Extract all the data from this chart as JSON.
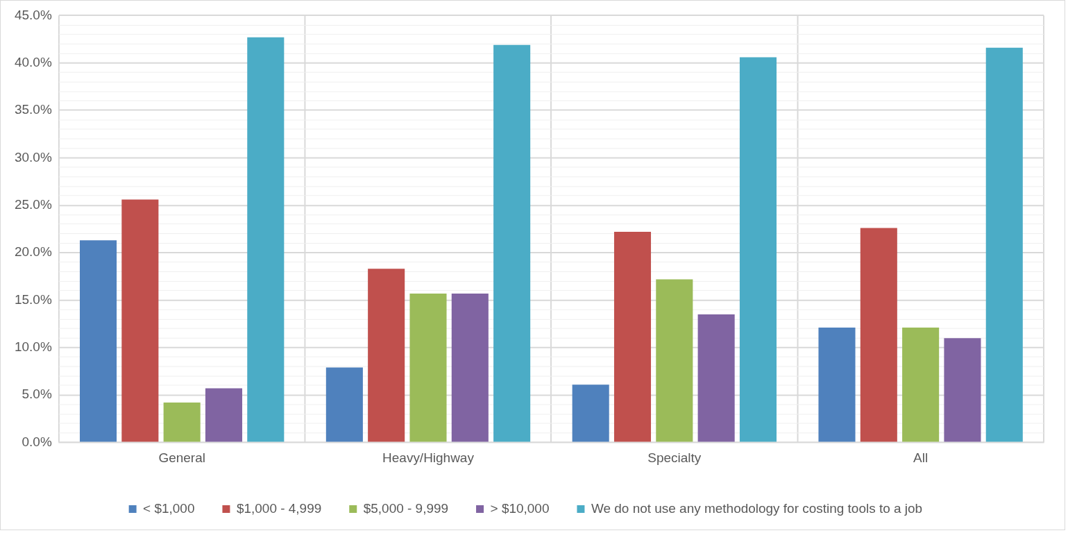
{
  "chart_data": {
    "type": "bar",
    "categories": [
      "General",
      "Heavy/Highway",
      "Specialty",
      "All"
    ],
    "series": [
      {
        "name": "< $1,000",
        "color": "#4f81bd",
        "values": [
          21.3,
          7.9,
          6.1,
          12.1
        ]
      },
      {
        "name": "$1,000 - 4,999",
        "color": "#c0504d",
        "values": [
          25.6,
          18.3,
          22.2,
          22.6
        ]
      },
      {
        "name": "$5,000 - 9,999",
        "color": "#9bbb59",
        "values": [
          4.2,
          15.7,
          17.2,
          12.1
        ]
      },
      {
        "name": "> $10,000",
        "color": "#8064a2",
        "values": [
          5.7,
          15.7,
          13.5,
          11.0
        ]
      },
      {
        "name": "We do not use any methodology for costing tools to a job",
        "color": "#4bacc6",
        "values": [
          42.7,
          41.9,
          40.6,
          41.6
        ]
      }
    ],
    "ylim": [
      0,
      45
    ],
    "yticks": [
      {
        "value": 0,
        "label": "0.0%"
      },
      {
        "value": 1,
        "label": null
      },
      {
        "value": 2,
        "label": null
      },
      {
        "value": 3,
        "label": null
      },
      {
        "value": 4,
        "label": null
      },
      {
        "value": 5,
        "label": "5.0%"
      },
      {
        "value": 6,
        "label": null
      },
      {
        "value": 7,
        "label": null
      },
      {
        "value": 8,
        "label": null
      },
      {
        "value": 9,
        "label": null
      },
      {
        "value": 10,
        "label": "10.0%"
      },
      {
        "value": 11,
        "label": null
      },
      {
        "value": 12,
        "label": null
      },
      {
        "value": 13,
        "label": null
      },
      {
        "value": 14,
        "label": null
      },
      {
        "value": 15,
        "label": "15.0%"
      },
      {
        "value": 16,
        "label": null
      },
      {
        "value": 17,
        "label": null
      },
      {
        "value": 18,
        "label": null
      },
      {
        "value": 19,
        "label": null
      },
      {
        "value": 20,
        "label": "20.0%"
      },
      {
        "value": 21,
        "label": null
      },
      {
        "value": 22,
        "label": null
      },
      {
        "value": 23,
        "label": null
      },
      {
        "value": 24,
        "label": null
      },
      {
        "value": 25,
        "label": "25.0%"
      },
      {
        "value": 26,
        "label": null
      },
      {
        "value": 27,
        "label": null
      },
      {
        "value": 28,
        "label": null
      },
      {
        "value": 29,
        "label": null
      },
      {
        "value": 30,
        "label": "30.0%"
      },
      {
        "value": 31,
        "label": null
      },
      {
        "value": 32,
        "label": null
      },
      {
        "value": 33,
        "label": null
      },
      {
        "value": 34,
        "label": null
      },
      {
        "value": 35,
        "label": "35.0%"
      },
      {
        "value": 36,
        "label": null
      },
      {
        "value": 37,
        "label": null
      },
      {
        "value": 38,
        "label": null
      },
      {
        "value": 39,
        "label": null
      },
      {
        "value": 40,
        "label": "40.0%"
      },
      {
        "value": 41,
        "label": null
      },
      {
        "value": 42,
        "label": null
      },
      {
        "value": 43,
        "label": null
      },
      {
        "value": 44,
        "label": null
      },
      {
        "value": 45,
        "label": "45.0%"
      }
    ],
    "grid": true,
    "legend": "bottom"
  }
}
